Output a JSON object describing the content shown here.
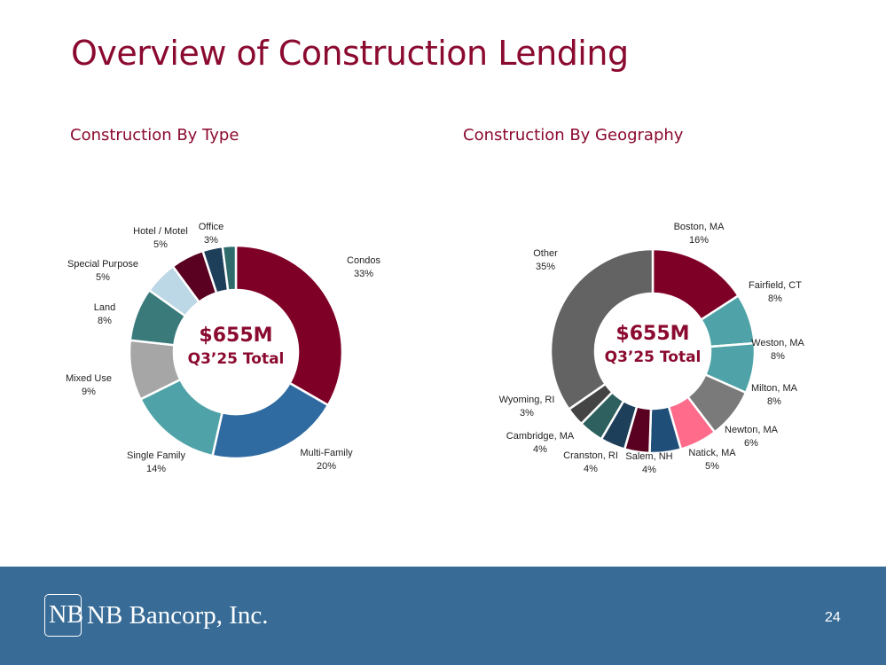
{
  "title": "Overview of Construction Lending",
  "footer": {
    "company": "NB Bancorp, Inc.",
    "logo_mark": "NB",
    "page_number": "24"
  },
  "chart_data": [
    {
      "type": "donut",
      "title": "Construction By Type",
      "center_value": "$655M",
      "center_label": "Q3’25 Total",
      "categories": [
        "Condos",
        "Multi-Family",
        "Single Family",
        "Mixed Use",
        "Land",
        "Special Purpose",
        "Hotel / Motel",
        "Office",
        ""
      ],
      "values": [
        33,
        20,
        14,
        9,
        8,
        5,
        5,
        3,
        2
      ],
      "labels": [
        "33%",
        "20%",
        "14%",
        "9%",
        "8%",
        "5%",
        "5%",
        "3%",
        ""
      ],
      "colors": [
        "#7f0026",
        "#2f6aa0",
        "#4fa3a8",
        "#a6a6a6",
        "#3a7a7a",
        "#bcd7e6",
        "#5a0020",
        "#1e3f5a",
        "#2f6b6b"
      ]
    },
    {
      "type": "donut",
      "title": "Construction By Geography",
      "center_value": "$655M",
      "center_label": "Q3’25 Total",
      "categories": [
        "Boston, MA",
        "Fairfield, CT",
        "Weston, MA",
        "Milton, MA",
        "Newton, MA",
        "Natick, MA",
        "Salem, NH",
        "Cranston, RI",
        "Cambridge, MA",
        "Wyoming, RI",
        "Other"
      ],
      "values": [
        16,
        8,
        8,
        8,
        6,
        5,
        4,
        4,
        4,
        3,
        35
      ],
      "labels": [
        "16%",
        "8%",
        "8%",
        "8%",
        "6%",
        "5%",
        "4%",
        "4%",
        "4%",
        "3%",
        "35%"
      ],
      "colors": [
        "#7f0026",
        "#4fa3a8",
        "#4fa3a8",
        "#7a7a7a",
        "#ff6b8a",
        "#1f4e79",
        "#5a0020",
        "#1e3f5a",
        "#2e6060",
        "#444444",
        "#636363"
      ]
    }
  ]
}
